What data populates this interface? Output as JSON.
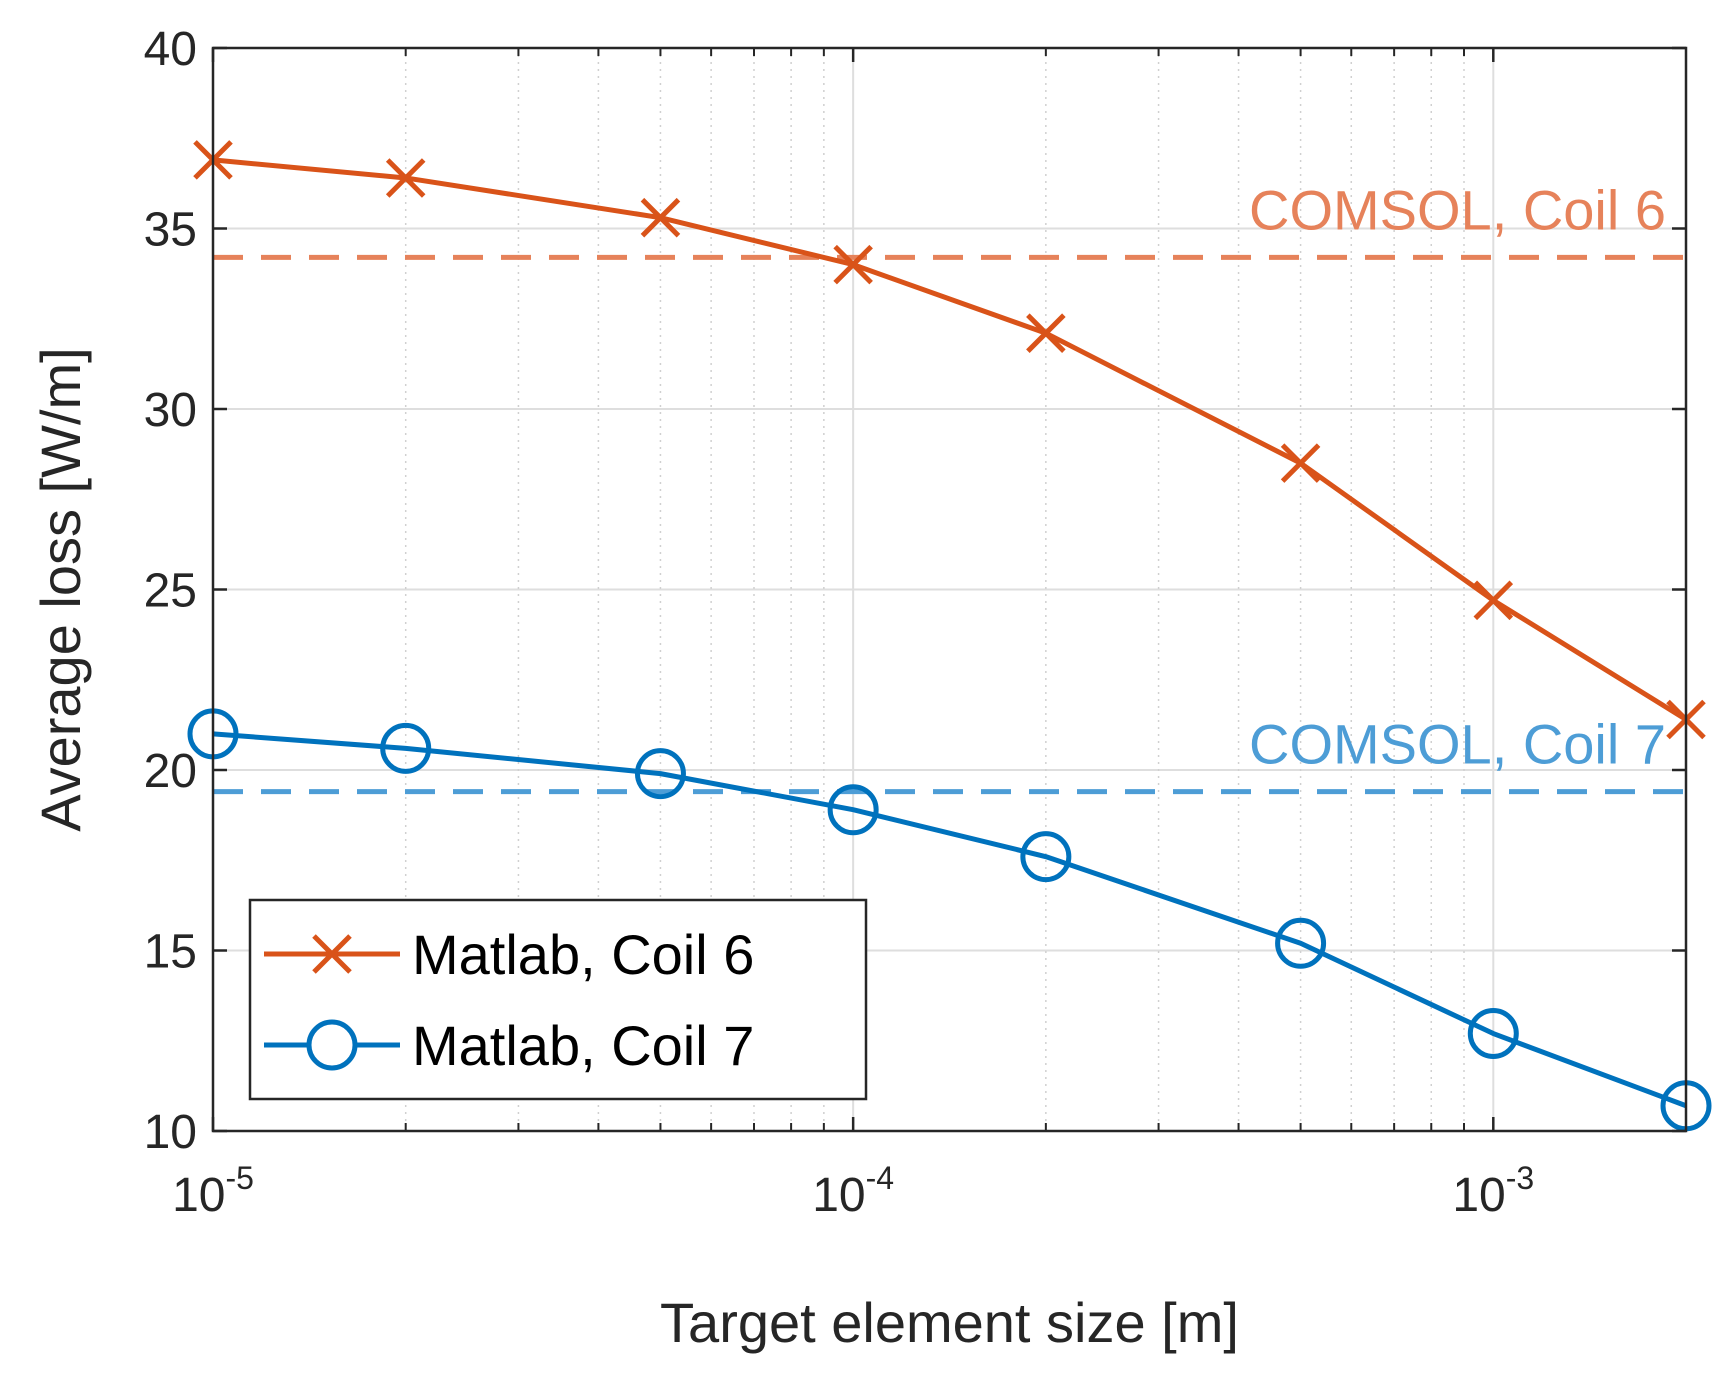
{
  "chart_data": {
    "type": "line",
    "xscale": "log",
    "xlabel": "Target element size [m]",
    "ylabel": "Average loss [W/m]",
    "xlim": [
      1e-05,
      0.002
    ],
    "ylim": [
      10,
      40
    ],
    "xticks": [
      {
        "base": "10",
        "exp": "-5"
      },
      {
        "base": "10",
        "exp": "-4"
      },
      {
        "base": "10",
        "exp": "-3"
      }
    ],
    "yticks": [
      "10",
      "15",
      "20",
      "25",
      "30",
      "35",
      "40"
    ],
    "grid": true,
    "legend_position": "bottom-left",
    "series": [
      {
        "name": "Matlab, Coil 6",
        "color": "#D95319",
        "marker": "x",
        "x": [
          1e-05,
          2e-05,
          5e-05,
          0.0001,
          0.0002,
          0.0005,
          0.001,
          0.002
        ],
        "y": [
          36.9,
          36.4,
          35.3,
          34.0,
          32.1,
          28.5,
          24.7,
          21.4
        ]
      },
      {
        "name": "Matlab, Coil 7",
        "color": "#0072BD",
        "marker": "o",
        "x": [
          1e-05,
          2e-05,
          5e-05,
          0.0001,
          0.0002,
          0.0005,
          0.001,
          0.002
        ],
        "y": [
          21.0,
          20.6,
          19.9,
          18.9,
          17.6,
          15.2,
          12.7,
          10.7
        ]
      }
    ],
    "reference_lines": [
      {
        "label": "COMSOL, Coil 6",
        "y": 34.2,
        "color": "#E6825A"
      },
      {
        "label": "COMSOL, Coil 7",
        "y": 19.4,
        "color": "#4D9DD6"
      }
    ]
  }
}
